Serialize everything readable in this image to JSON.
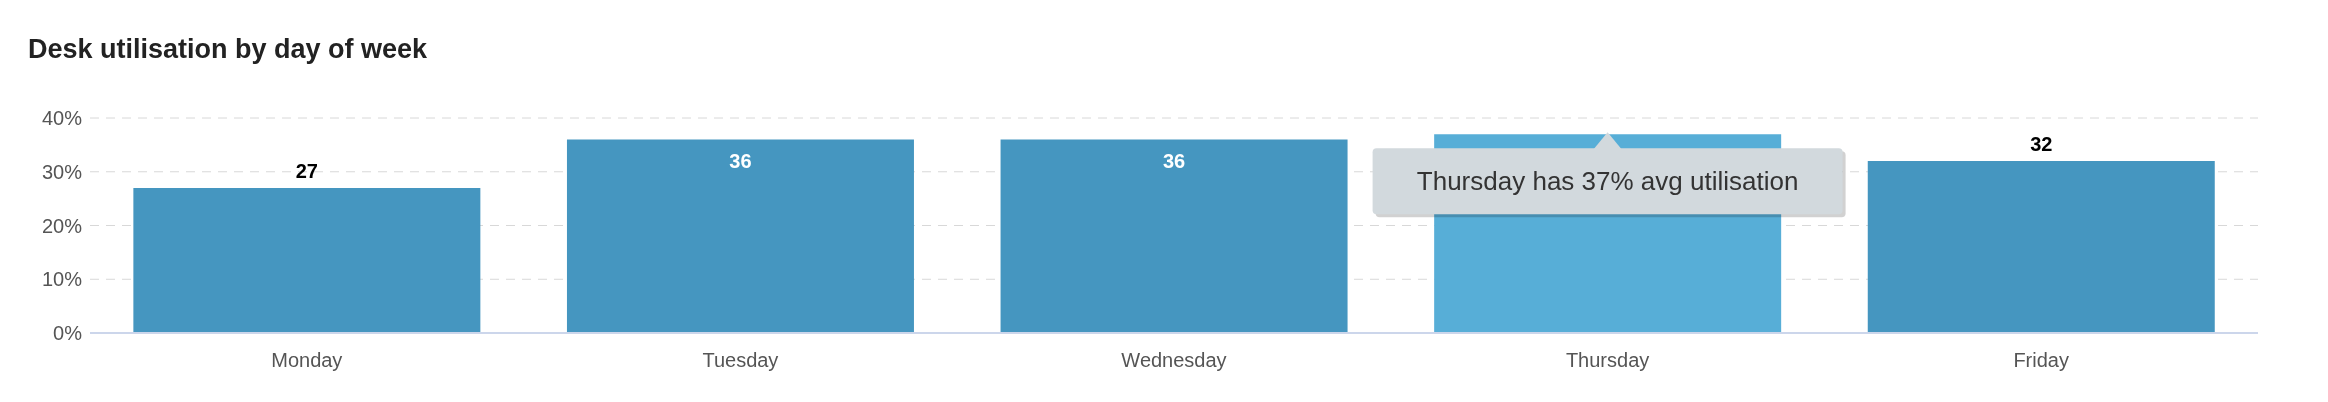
{
  "chart_data": {
    "type": "bar",
    "title": "Desk utilisation by day of week",
    "categories": [
      "Monday",
      "Tuesday",
      "Wednesday",
      "Thursday",
      "Friday"
    ],
    "values": [
      27,
      36,
      36,
      37,
      32
    ],
    "colors": [
      "#4596c0",
      "#4596c0",
      "#4596c0",
      "#57aed7",
      "#4596c0"
    ],
    "value_labels": [
      "27",
      "36",
      "36",
      null,
      "32"
    ],
    "ylim": [
      0,
      40
    ],
    "yticks": [
      {
        "value": 0,
        "label": "0%"
      },
      {
        "value": 10,
        "label": "10%"
      },
      {
        "value": 20,
        "label": "20%"
      },
      {
        "value": 30,
        "label": "30%"
      },
      {
        "value": 40,
        "label": "40%"
      }
    ],
    "grid": "y",
    "legend": false,
    "annotations": [
      {
        "text": "Thursday has 37% avg utilisation",
        "x": "Thursday",
        "y": 37
      }
    ]
  }
}
